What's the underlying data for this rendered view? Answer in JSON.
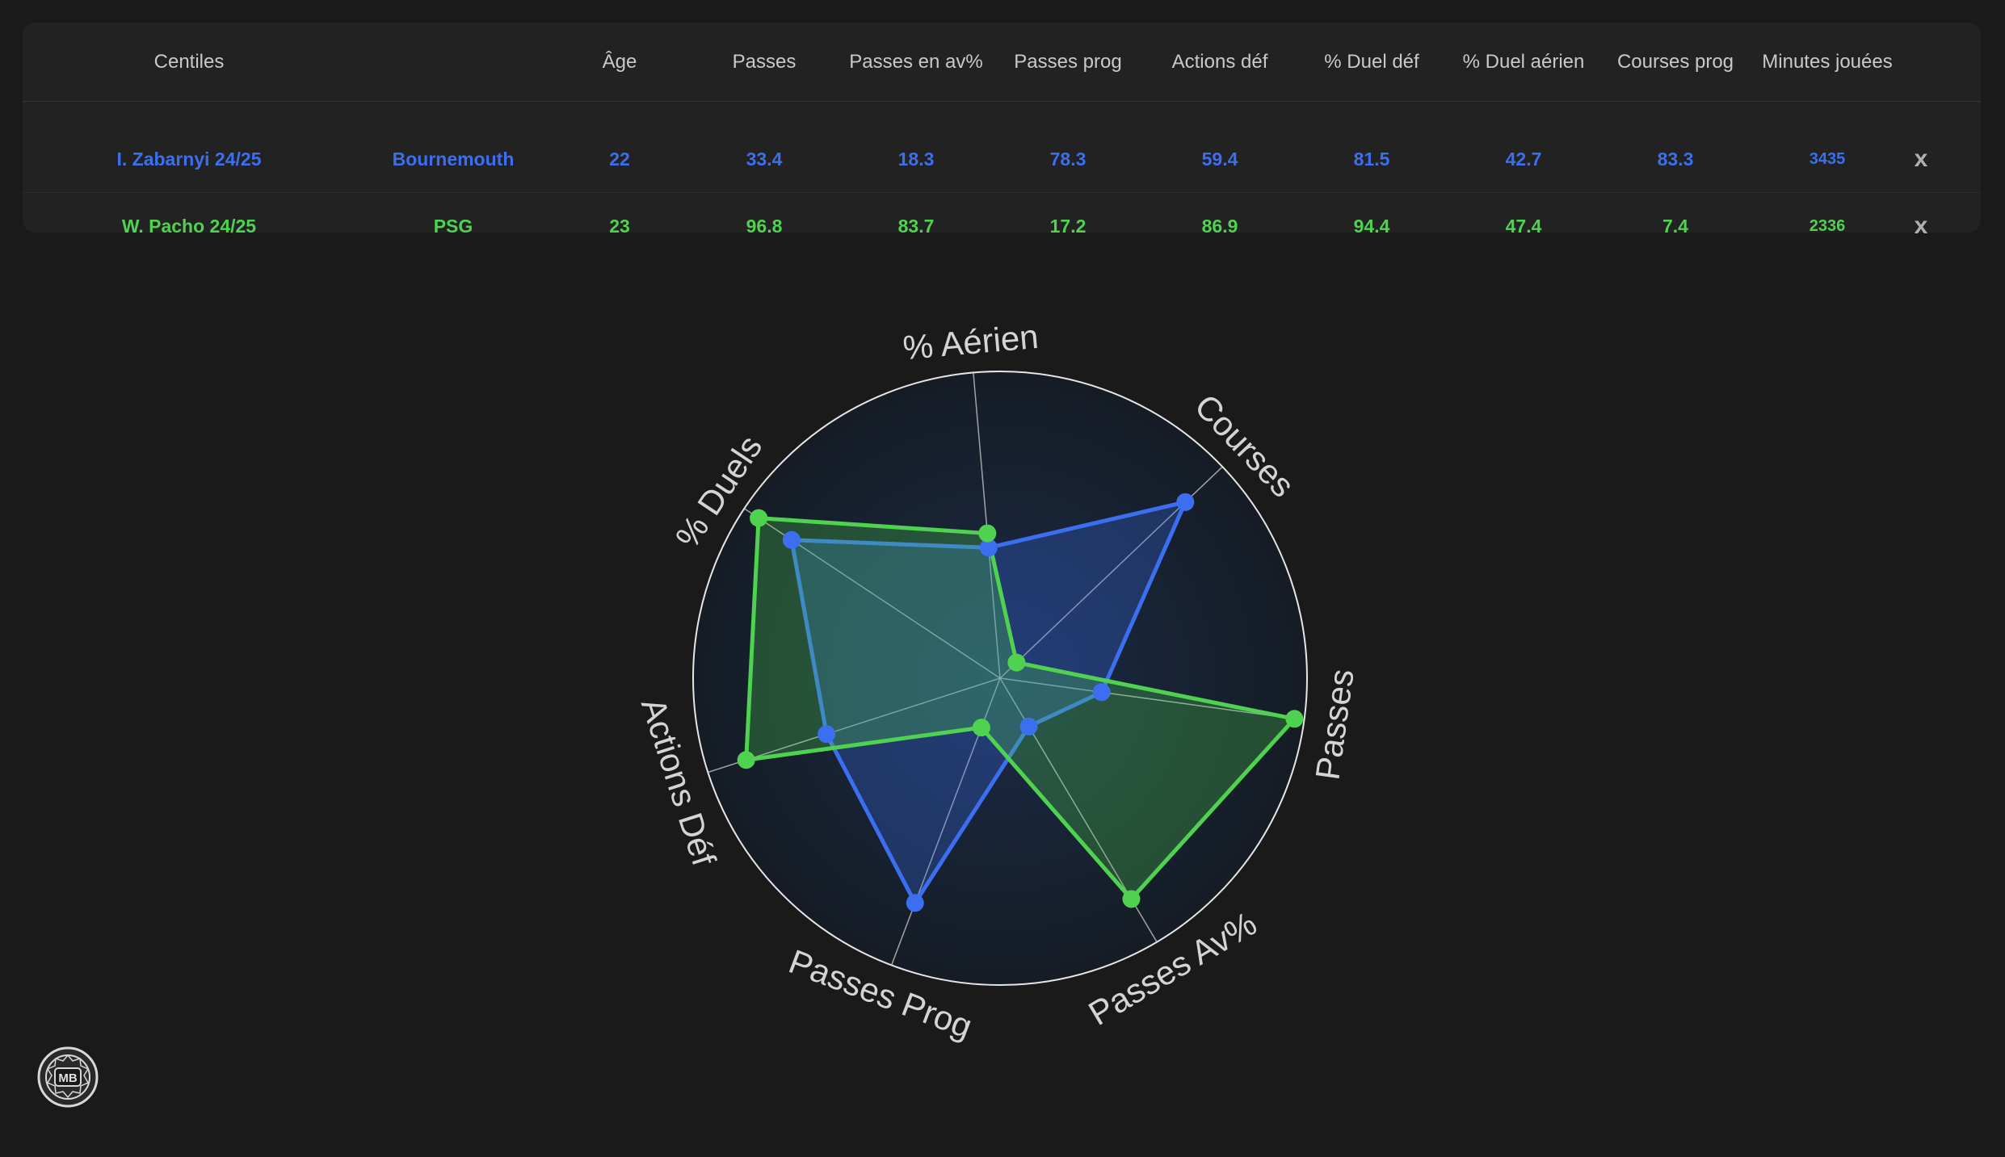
{
  "table": {
    "headers": [
      "Centiles",
      "",
      "Âge",
      "Passes",
      "Passes en av%",
      "Passes prog",
      "Actions déf",
      "% Duel déf",
      "% Duel aérien",
      "Courses prog",
      "Minutes jouées"
    ],
    "rows": [
      {
        "player": "I. Zabarnyi 24/25",
        "team": "Bournemouth",
        "age": "22",
        "passes": "33.4",
        "passes_av": "18.3",
        "passes_prog": "78.3",
        "actions_def": "59.4",
        "duel_def": "81.5",
        "duel_aerien": "42.7",
        "courses_prog": "83.3",
        "minutes": "3435",
        "remove": "x",
        "color": "#3b6ff0"
      },
      {
        "player": "W. Pacho 24/25",
        "team": "PSG",
        "age": "23",
        "passes": "96.8",
        "passes_av": "83.7",
        "passes_prog": "17.2",
        "actions_def": "86.9",
        "duel_def": "94.4",
        "duel_aerien": "47.4",
        "courses_prog": "7.4",
        "minutes": "2336",
        "remove": "x",
        "color": "#4fd24f"
      }
    ]
  },
  "chart_data": {
    "type": "radar",
    "axes": [
      "% Aérien",
      "Courses",
      "Passes",
      "Passes Av%",
      "Passes Prog",
      "Actions Déf",
      "% Duels"
    ],
    "range": [
      0,
      100
    ],
    "grid": true,
    "series": [
      {
        "name": "I. Zabarnyi 24/25",
        "color": "#3b6ff0",
        "values": [
          42.7,
          83.3,
          33.4,
          18.3,
          78.3,
          59.4,
          81.5
        ]
      },
      {
        "name": "W. Pacho 24/25",
        "color": "#4fd24f",
        "values": [
          47.4,
          7.4,
          96.8,
          83.7,
          17.2,
          86.9,
          94.4
        ]
      }
    ]
  },
  "logo": {
    "text": "MB"
  }
}
